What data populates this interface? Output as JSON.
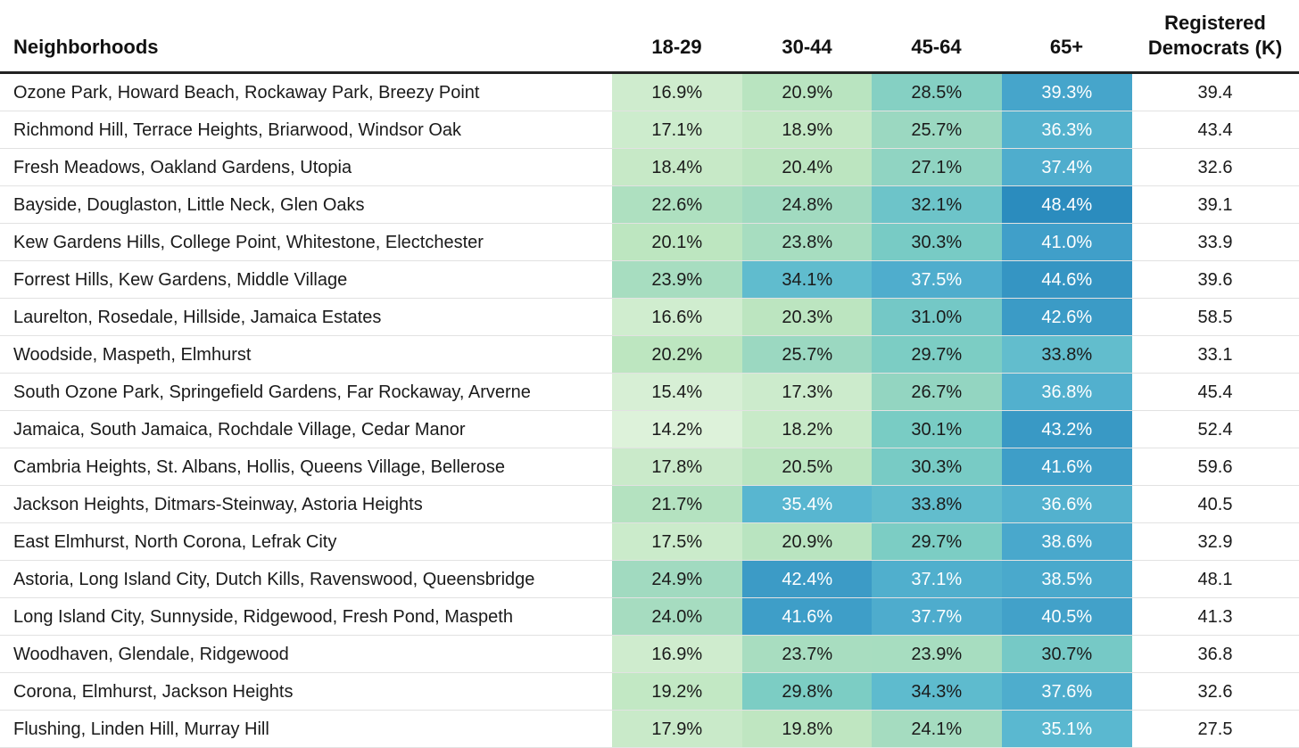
{
  "chart_data": {
    "type": "table",
    "columns": [
      "Neighborhoods",
      "18-29",
      "30-44",
      "45-64",
      "65+",
      "Registered Democrats (K)"
    ],
    "rows": [
      {
        "name": "Ozone Park, Howard Beach, Rockaway Park, Breezy Point",
        "values": [
          "16.9%",
          "20.9%",
          "28.5%",
          "39.3%"
        ],
        "dem": "39.4"
      },
      {
        "name": "Richmond Hill, Terrace Heights, Briarwood, Windsor Oak",
        "values": [
          "17.1%",
          "18.9%",
          "25.7%",
          "36.3%"
        ],
        "dem": "43.4"
      },
      {
        "name": "Fresh Meadows, Oakland Gardens, Utopia",
        "values": [
          "18.4%",
          "20.4%",
          "27.1%",
          "37.4%"
        ],
        "dem": "32.6"
      },
      {
        "name": "Bayside, Douglaston, Little Neck, Glen Oaks",
        "values": [
          "22.6%",
          "24.8%",
          "32.1%",
          "48.4%"
        ],
        "dem": "39.1"
      },
      {
        "name": "Kew Gardens Hills, College Point, Whitestone, Electchester",
        "values": [
          "20.1%",
          "23.8%",
          "30.3%",
          "41.0%"
        ],
        "dem": "33.9"
      },
      {
        "name": "Forrest Hills, Kew Gardens, Middle Village",
        "values": [
          "23.9%",
          "34.1%",
          "37.5%",
          "44.6%"
        ],
        "dem": "39.6"
      },
      {
        "name": "Laurelton, Rosedale, Hillside, Jamaica Estates",
        "values": [
          "16.6%",
          "20.3%",
          "31.0%",
          "42.6%"
        ],
        "dem": "58.5"
      },
      {
        "name": "Woodside, Maspeth, Elmhurst",
        "values": [
          "20.2%",
          "25.7%",
          "29.7%",
          "33.8%"
        ],
        "dem": "33.1"
      },
      {
        "name": "South Ozone Park, Springefield Gardens, Far Rockaway, Arverne",
        "values": [
          "15.4%",
          "17.3%",
          "26.7%",
          "36.8%"
        ],
        "dem": "45.4"
      },
      {
        "name": "Jamaica, South Jamaica, Rochdale Village, Cedar Manor",
        "values": [
          "14.2%",
          "18.2%",
          "30.1%",
          "43.2%"
        ],
        "dem": "52.4"
      },
      {
        "name": "Cambria Heights, St. Albans, Hollis, Queens Village, Bellerose",
        "values": [
          "17.8%",
          "20.5%",
          "30.3%",
          "41.6%"
        ],
        "dem": "59.6"
      },
      {
        "name": "Jackson Heights, Ditmars-Steinway, Astoria Heights",
        "values": [
          "21.7%",
          "35.4%",
          "33.8%",
          "36.6%"
        ],
        "dem": "40.5"
      },
      {
        "name": "East Elmhurst, North Corona, Lefrak City",
        "values": [
          "17.5%",
          "20.9%",
          "29.7%",
          "38.6%"
        ],
        "dem": "32.9"
      },
      {
        "name": "Astoria, Long Island City, Dutch Kills, Ravenswood, Queensbridge",
        "values": [
          "24.9%",
          "42.4%",
          "37.1%",
          "38.5%"
        ],
        "dem": "48.1"
      },
      {
        "name": "Long Island City, Sunnyside, Ridgewood, Fresh Pond, Maspeth",
        "values": [
          "24.0%",
          "41.6%",
          "37.7%",
          "40.5%"
        ],
        "dem": "41.3"
      },
      {
        "name": "Woodhaven, Glendale, Ridgewood",
        "values": [
          "16.9%",
          "23.7%",
          "23.9%",
          "30.7%"
        ],
        "dem": "36.8"
      },
      {
        "name": "Corona, Elmhurst, Jackson Heights",
        "values": [
          "19.2%",
          "29.8%",
          "34.3%",
          "37.6%"
        ],
        "dem": "32.6"
      },
      {
        "name": "Flushing, Linden Hill, Murray Hill",
        "values": [
          "17.9%",
          "19.8%",
          "24.1%",
          "35.1%"
        ],
        "dem": "27.5"
      }
    ]
  }
}
